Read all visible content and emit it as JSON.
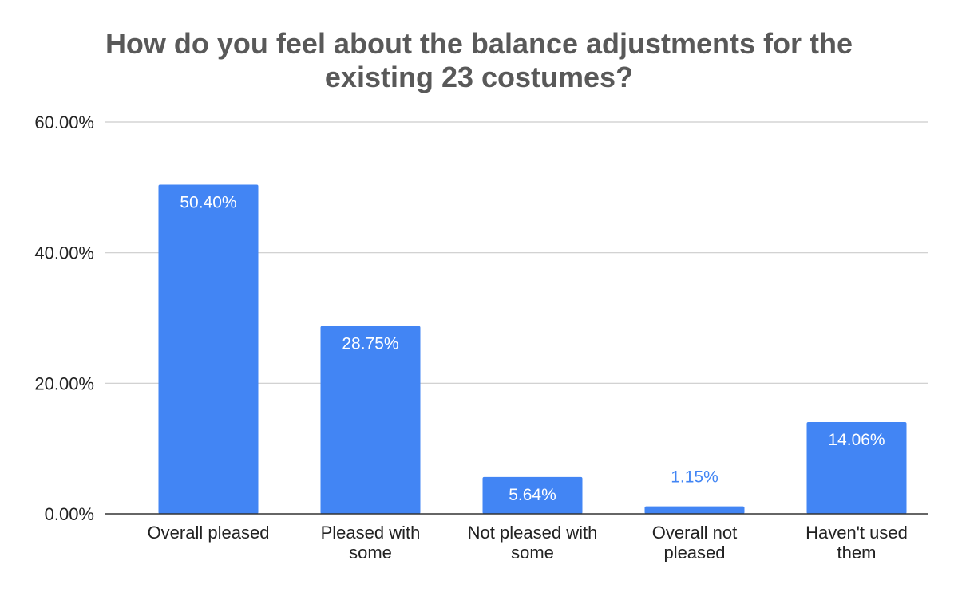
{
  "chart_data": {
    "type": "bar",
    "title": "How do you feel about the balance adjustments for the existing 23 costumes?",
    "title_lines": [
      "How do you feel about the balance adjustments for the",
      "existing 23 costumes?"
    ],
    "categories": [
      [
        "Overall pleased"
      ],
      [
        "Pleased with",
        "some"
      ],
      [
        "Not pleased with",
        "some"
      ],
      [
        "Overall not",
        "pleased"
      ],
      [
        "Haven't used",
        "them"
      ]
    ],
    "values": [
      50.4,
      28.75,
      5.64,
      1.15,
      14.06
    ],
    "data_labels": [
      "50.40%",
      "28.75%",
      "5.64%",
      "1.15%",
      "14.06%"
    ],
    "yticks": [
      "0.00%",
      "20.00%",
      "40.00%",
      "60.00%"
    ],
    "ytick_values": [
      0,
      20,
      40,
      60
    ],
    "ylim": [
      0,
      60
    ],
    "xlabel": "",
    "ylabel": "",
    "grid": true,
    "legend": "none",
    "colors": {
      "bar": "#4285F4",
      "label_inside": "#ffffff",
      "label_outside": "#4285F4",
      "grid": "#cccccc",
      "axis": "#333333",
      "title": "#595959"
    }
  }
}
